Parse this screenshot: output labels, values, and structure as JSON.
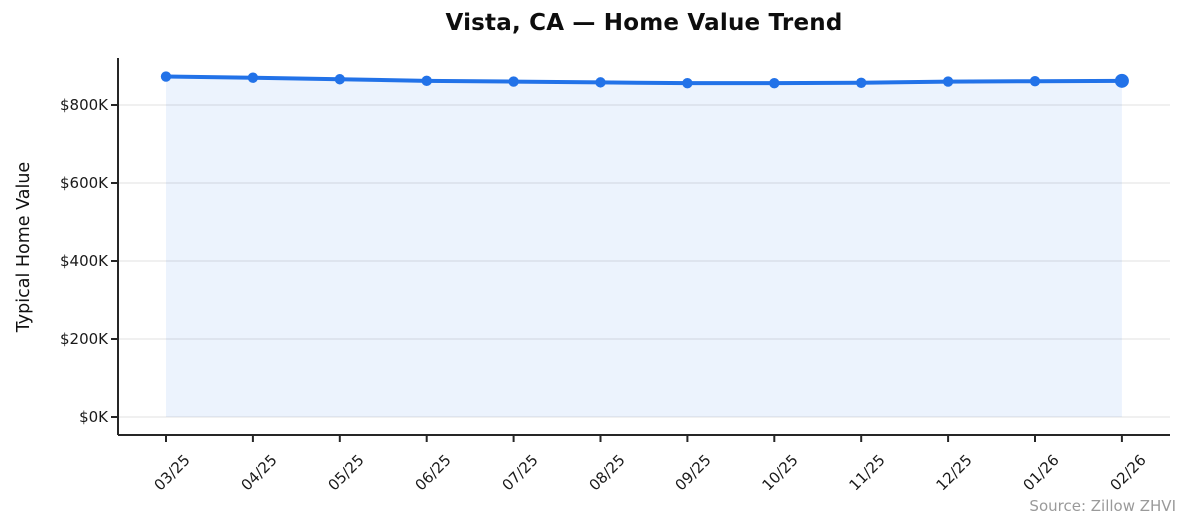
{
  "chart_data": {
    "type": "line",
    "title": "Vista, CA — Home Value Trend",
    "ylabel": "Typical Home Value",
    "xlabel": "",
    "categories": [
      "03/25",
      "04/25",
      "05/25",
      "06/25",
      "07/25",
      "08/25",
      "09/25",
      "10/25",
      "11/25",
      "12/25",
      "01/26",
      "02/26"
    ],
    "series": [
      {
        "name": "Typical Home Value ($K)",
        "values": [
          873,
          870,
          866,
          862,
          860,
          858,
          856,
          856,
          857,
          860,
          861,
          862
        ]
      }
    ],
    "unit": "USD thousands",
    "yticks": [
      0,
      200,
      400,
      600,
      800
    ],
    "ytick_labels": [
      "$0K",
      "$200K",
      "$400K",
      "$600K",
      "$800K"
    ],
    "ylim": [
      -46,
      920
    ],
    "grid": "horizontal",
    "legend": "none",
    "area_fill": true,
    "marker": "circle",
    "last_point_emphasized": true,
    "source_note": "Source: Zillow ZHVI",
    "colors": {
      "line": "#2272e8",
      "marker": "#2272e8",
      "area": "#2272e8",
      "area_opacity": 0.085,
      "grid": "#e6e6e6",
      "axis": "#262626",
      "title_text": "#0d0d0d",
      "tick_text": "#1a1a1a",
      "source_text": "#9a9a9a",
      "background": "#ffffff"
    }
  }
}
